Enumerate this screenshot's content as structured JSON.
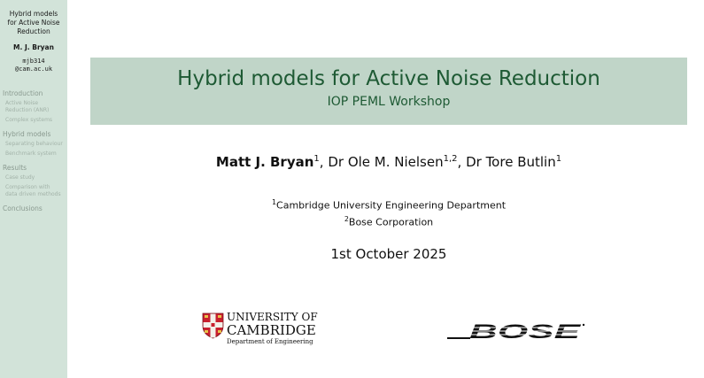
{
  "sidebar": {
    "title_lines": [
      "Hybrid models",
      "for Active Noise",
      "Reduction"
    ],
    "author": "M. J. Bryan",
    "email_lines": [
      "mjb314",
      "@cam.ac.uk"
    ],
    "sections": [
      {
        "label": "Introduction",
        "subs": [
          "Active Noise",
          "Reduction (ANR)",
          "Complex systems"
        ]
      },
      {
        "label": "Hybrid models",
        "subs": [
          "Separating behaviour",
          "Benchmark system"
        ]
      },
      {
        "label": "Results",
        "subs": [
          "Case study",
          "Comparison with",
          "data driven methods"
        ]
      },
      {
        "label": "Conclusions",
        "subs": []
      }
    ]
  },
  "slide": {
    "title": "Hybrid models for Active Noise Reduction",
    "subtitle": "IOP PEML Workshop",
    "authors": [
      {
        "name": "Matt J. Bryan",
        "sup": "1",
        "bold": true
      },
      {
        "name": "Dr Ole M. Nielsen",
        "sup": "1,2",
        "bold": false
      },
      {
        "name": "Dr Tore Butlin",
        "sup": "1",
        "bold": false
      }
    ],
    "affiliations": [
      {
        "sup": "1",
        "text": "Cambridge University Engineering Department"
      },
      {
        "sup": "2",
        "text": "Bose Corporation"
      }
    ],
    "date": "1st October 2025",
    "cambridge_logo": {
      "line1": "UNIVERSITY OF",
      "line2": "CAMBRIDGE",
      "line3": "Department of Engineering"
    },
    "bose_logo_text": "BOSE"
  },
  "colors": {
    "sidebar_bg": "#d2e3d9",
    "banner_bg": "#c0d5c8",
    "title_green": "#1e5a34",
    "cambridge_shield_red": "#c8202e"
  }
}
